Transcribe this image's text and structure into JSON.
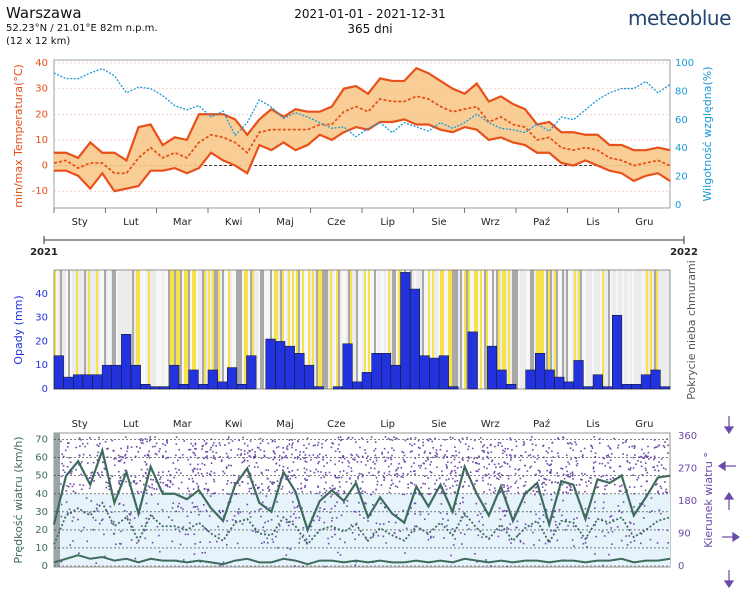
{
  "header": {
    "city": "Warszawa",
    "coords": "52.23°N / 21.01°E   82m n.p.m.",
    "grid": "(12 x 12 km)",
    "period": "2021-01-01 - 2021-12-31",
    "days": "365 dni",
    "brand": "meteoblue"
  },
  "colors": {
    "temp_line": "#e8501a",
    "temp_band": "#f8c98b",
    "humidity": "#1a9ad8",
    "precip": "#2233dd",
    "cloud_yellow": "#f7e24a",
    "cloud_gray": "#a9a9a9",
    "wind_line": "#3f6b5e",
    "wind_dir": "#6b4aa8",
    "wind_band": "#e6f3fb"
  },
  "months": [
    "Sty",
    "Lut",
    "Mar",
    "Kwi",
    "Maj",
    "Cze",
    "Lip",
    "Sie",
    "Wrz",
    "Paź",
    "Lis",
    "Gru"
  ],
  "year_start": "2021",
  "year_end": "2022",
  "chart_data": [
    {
      "type": "line",
      "title": "",
      "ylabel": "min/max Temperatura(°C)",
      "y2label": "Wilgotność względna(%)",
      "ylim": [
        -15,
        40
      ],
      "y2lim": [
        0,
        100
      ],
      "yticks": [
        -10,
        0,
        10,
        20,
        30,
        40
      ],
      "y2ticks": [
        0,
        20,
        40,
        60,
        80,
        100
      ],
      "x_week": [
        0,
        1,
        2,
        3,
        4,
        5,
        6,
        7,
        8,
        9,
        10,
        11,
        12,
        13,
        14,
        15,
        16,
        17,
        18,
        19,
        20,
        21,
        22,
        23,
        24,
        25,
        26,
        27,
        28,
        29,
        30,
        31,
        32,
        33,
        34,
        35,
        36,
        37,
        38,
        39,
        40,
        41,
        42,
        43,
        44,
        45,
        46,
        47,
        48,
        49,
        50,
        51
      ],
      "series": [
        {
          "name": "max",
          "values": [
            5,
            5,
            3,
            9,
            5,
            5,
            2,
            15,
            16,
            8,
            11,
            10,
            20,
            20,
            20,
            18,
            12,
            18,
            22,
            19,
            22,
            21,
            21,
            23,
            30,
            31,
            28,
            34,
            33,
            33,
            38,
            36,
            33,
            30,
            28,
            32,
            25,
            27,
            24,
            22,
            16,
            17,
            13,
            13,
            12,
            12,
            8,
            8,
            6,
            6,
            7,
            6
          ]
        },
        {
          "name": "min",
          "values": [
            -2,
            -2,
            -4,
            -9,
            -3,
            -10,
            -9,
            -8,
            -2,
            -2,
            -1,
            -3,
            -1,
            5,
            2,
            0,
            -3,
            8,
            6,
            9,
            6,
            8,
            12,
            10,
            13,
            15,
            14,
            17,
            17,
            18,
            16,
            16,
            14,
            13,
            15,
            14,
            10,
            11,
            9,
            8,
            5,
            5,
            1,
            0,
            2,
            0,
            -2,
            -3,
            -6,
            -4,
            -3,
            -6
          ]
        },
        {
          "name": "mean",
          "values": [
            1,
            2,
            -1,
            1,
            1,
            -3,
            -3,
            3,
            7,
            3,
            5,
            3,
            9,
            12,
            11,
            9,
            5,
            13,
            14,
            14,
            14,
            14,
            16,
            16,
            21,
            23,
            21,
            26,
            25,
            25,
            27,
            26,
            23,
            21,
            22,
            23,
            17,
            19,
            16,
            15,
            10,
            11,
            7,
            6,
            7,
            6,
            3,
            2,
            0,
            1,
            2,
            0
          ]
        },
        {
          "name": "humidity",
          "values": [
            93,
            89,
            89,
            93,
            96,
            91,
            79,
            83,
            82,
            77,
            70,
            67,
            70,
            62,
            66,
            49,
            58,
            74,
            69,
            61,
            65,
            62,
            58,
            54,
            55,
            48,
            54,
            58,
            51,
            58,
            55,
            52,
            58,
            54,
            58,
            64,
            58,
            54,
            53,
            51,
            57,
            52,
            62,
            60,
            67,
            74,
            79,
            82,
            82,
            87,
            79,
            85
          ]
        }
      ]
    },
    {
      "type": "bar",
      "title": "",
      "ylabel": "Opady (mm)",
      "y2label": "Pokrycie nieba chmurami",
      "ylim": [
        0,
        50
      ],
      "yticks": [
        0,
        10,
        20,
        30,
        40
      ],
      "series": [
        {
          "name": "precipitation",
          "values": [
            14,
            5,
            6,
            6,
            6,
            10,
            10,
            23,
            10,
            2,
            1,
            1,
            10,
            2,
            8,
            2,
            8,
            3,
            9,
            2,
            14,
            0,
            21,
            20,
            18,
            15,
            10,
            1,
            0,
            1,
            19,
            3,
            7,
            15,
            15,
            10,
            49,
            42,
            14,
            13,
            14,
            1,
            0,
            24,
            0,
            18,
            8,
            2,
            0,
            8,
            15,
            8,
            5,
            3,
            12,
            1,
            6,
            1,
            31,
            2,
            2,
            6,
            8,
            1
          ]
        }
      ]
    },
    {
      "type": "line",
      "title": "",
      "ylabel": "Prędkość wiatru (km/h)",
      "y2label": "Kierunek wiatru °",
      "ylim": [
        0,
        72
      ],
      "y2lim": [
        0,
        360
      ],
      "yticks": [
        0,
        10,
        20,
        30,
        40,
        50,
        60,
        70
      ],
      "y2ticks": [
        0,
        90,
        180,
        270,
        360
      ],
      "x_week": [
        0,
        1,
        2,
        3,
        4,
        5,
        6,
        7,
        8,
        9,
        10,
        11,
        12,
        13,
        14,
        15,
        16,
        17,
        18,
        19,
        20,
        21,
        22,
        23,
        24,
        25,
        26,
        27,
        28,
        29,
        30,
        31,
        32,
        33,
        34,
        35,
        36,
        37,
        38,
        39,
        40,
        41,
        42,
        43,
        44,
        45,
        46,
        47,
        48,
        49,
        50,
        51
      ],
      "series": [
        {
          "name": "max",
          "values": [
            23,
            50,
            58,
            45,
            64,
            35,
            52,
            29,
            55,
            40,
            40,
            37,
            42,
            32,
            25,
            45,
            54,
            35,
            30,
            52,
            41,
            20,
            36,
            42,
            36,
            46,
            27,
            38,
            29,
            24,
            44,
            33,
            45,
            30,
            55,
            40,
            28,
            44,
            25,
            40,
            46,
            23,
            47,
            45,
            26,
            48,
            46,
            50,
            28,
            38,
            49,
            50
          ]
        },
        {
          "name": "mean",
          "values": [
            12,
            28,
            32,
            28,
            35,
            22,
            27,
            14,
            28,
            22,
            22,
            20,
            24,
            18,
            14,
            24,
            26,
            18,
            17,
            27,
            22,
            12,
            20,
            22,
            19,
            23,
            14,
            21,
            17,
            14,
            22,
            18,
            24,
            17,
            29,
            21,
            15,
            23,
            14,
            21,
            25,
            13,
            25,
            24,
            15,
            26,
            24,
            27,
            16,
            20,
            25,
            27
          ]
        },
        {
          "name": "min",
          "values": [
            2,
            4,
            6,
            4,
            5,
            3,
            4,
            2,
            4,
            3,
            3,
            2,
            3,
            2,
            1,
            3,
            4,
            2,
            2,
            4,
            3,
            1,
            3,
            3,
            2,
            3,
            2,
            3,
            2,
            2,
            3,
            2,
            3,
            2,
            4,
            3,
            2,
            3,
            2,
            3,
            3,
            2,
            3,
            3,
            2,
            3,
            3,
            4,
            2,
            3,
            3,
            4
          ]
        }
      ]
    }
  ]
}
